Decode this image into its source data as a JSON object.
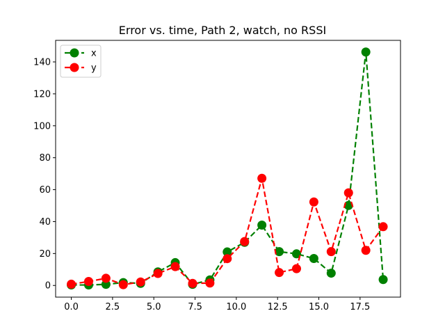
{
  "chart_data": {
    "type": "line",
    "title": "Error vs. time, Path 2, watch, no RSSI",
    "xlabel": "",
    "ylabel": "",
    "xlim": [
      -0.95,
      19.95
    ],
    "ylim": [
      -7.3,
      153.5
    ],
    "xticks": [
      0.0,
      2.5,
      5.0,
      7.5,
      10.0,
      12.5,
      15.0,
      17.5
    ],
    "xtick_labels": [
      "0.0",
      "2.5",
      "5.0",
      "7.5",
      "10.0",
      "12.5",
      "15.0",
      "17.5"
    ],
    "yticks": [
      0,
      20,
      40,
      60,
      80,
      100,
      120,
      140
    ],
    "ytick_labels": [
      "0",
      "20",
      "40",
      "60",
      "80",
      "100",
      "120",
      "140"
    ],
    "grid": false,
    "legend_position": "top-left",
    "x": [
      0.0,
      1.05,
      2.1,
      3.15,
      4.2,
      5.25,
      6.3,
      7.35,
      8.4,
      9.45,
      10.5,
      11.55,
      12.6,
      13.65,
      14.7,
      15.75,
      16.8,
      17.85,
      18.9
    ],
    "series": [
      {
        "name": "x",
        "color": "#008000",
        "values": [
          0.3,
          0.3,
          0.7,
          1.8,
          1.3,
          8.5,
          14.3,
          0.7,
          3.5,
          21.0,
          27.0,
          37.8,
          21.2,
          19.8,
          16.9,
          7.7,
          50.1,
          146.2,
          3.7
        ]
      },
      {
        "name": "y",
        "color": "#ff0000",
        "values": [
          0.8,
          2.5,
          4.5,
          0.5,
          2.2,
          7.5,
          11.8,
          1.3,
          1.5,
          16.8,
          27.5,
          67.1,
          8.1,
          10.5,
          52.3,
          21.2,
          58.0,
          22.0,
          36.8
        ]
      }
    ]
  }
}
